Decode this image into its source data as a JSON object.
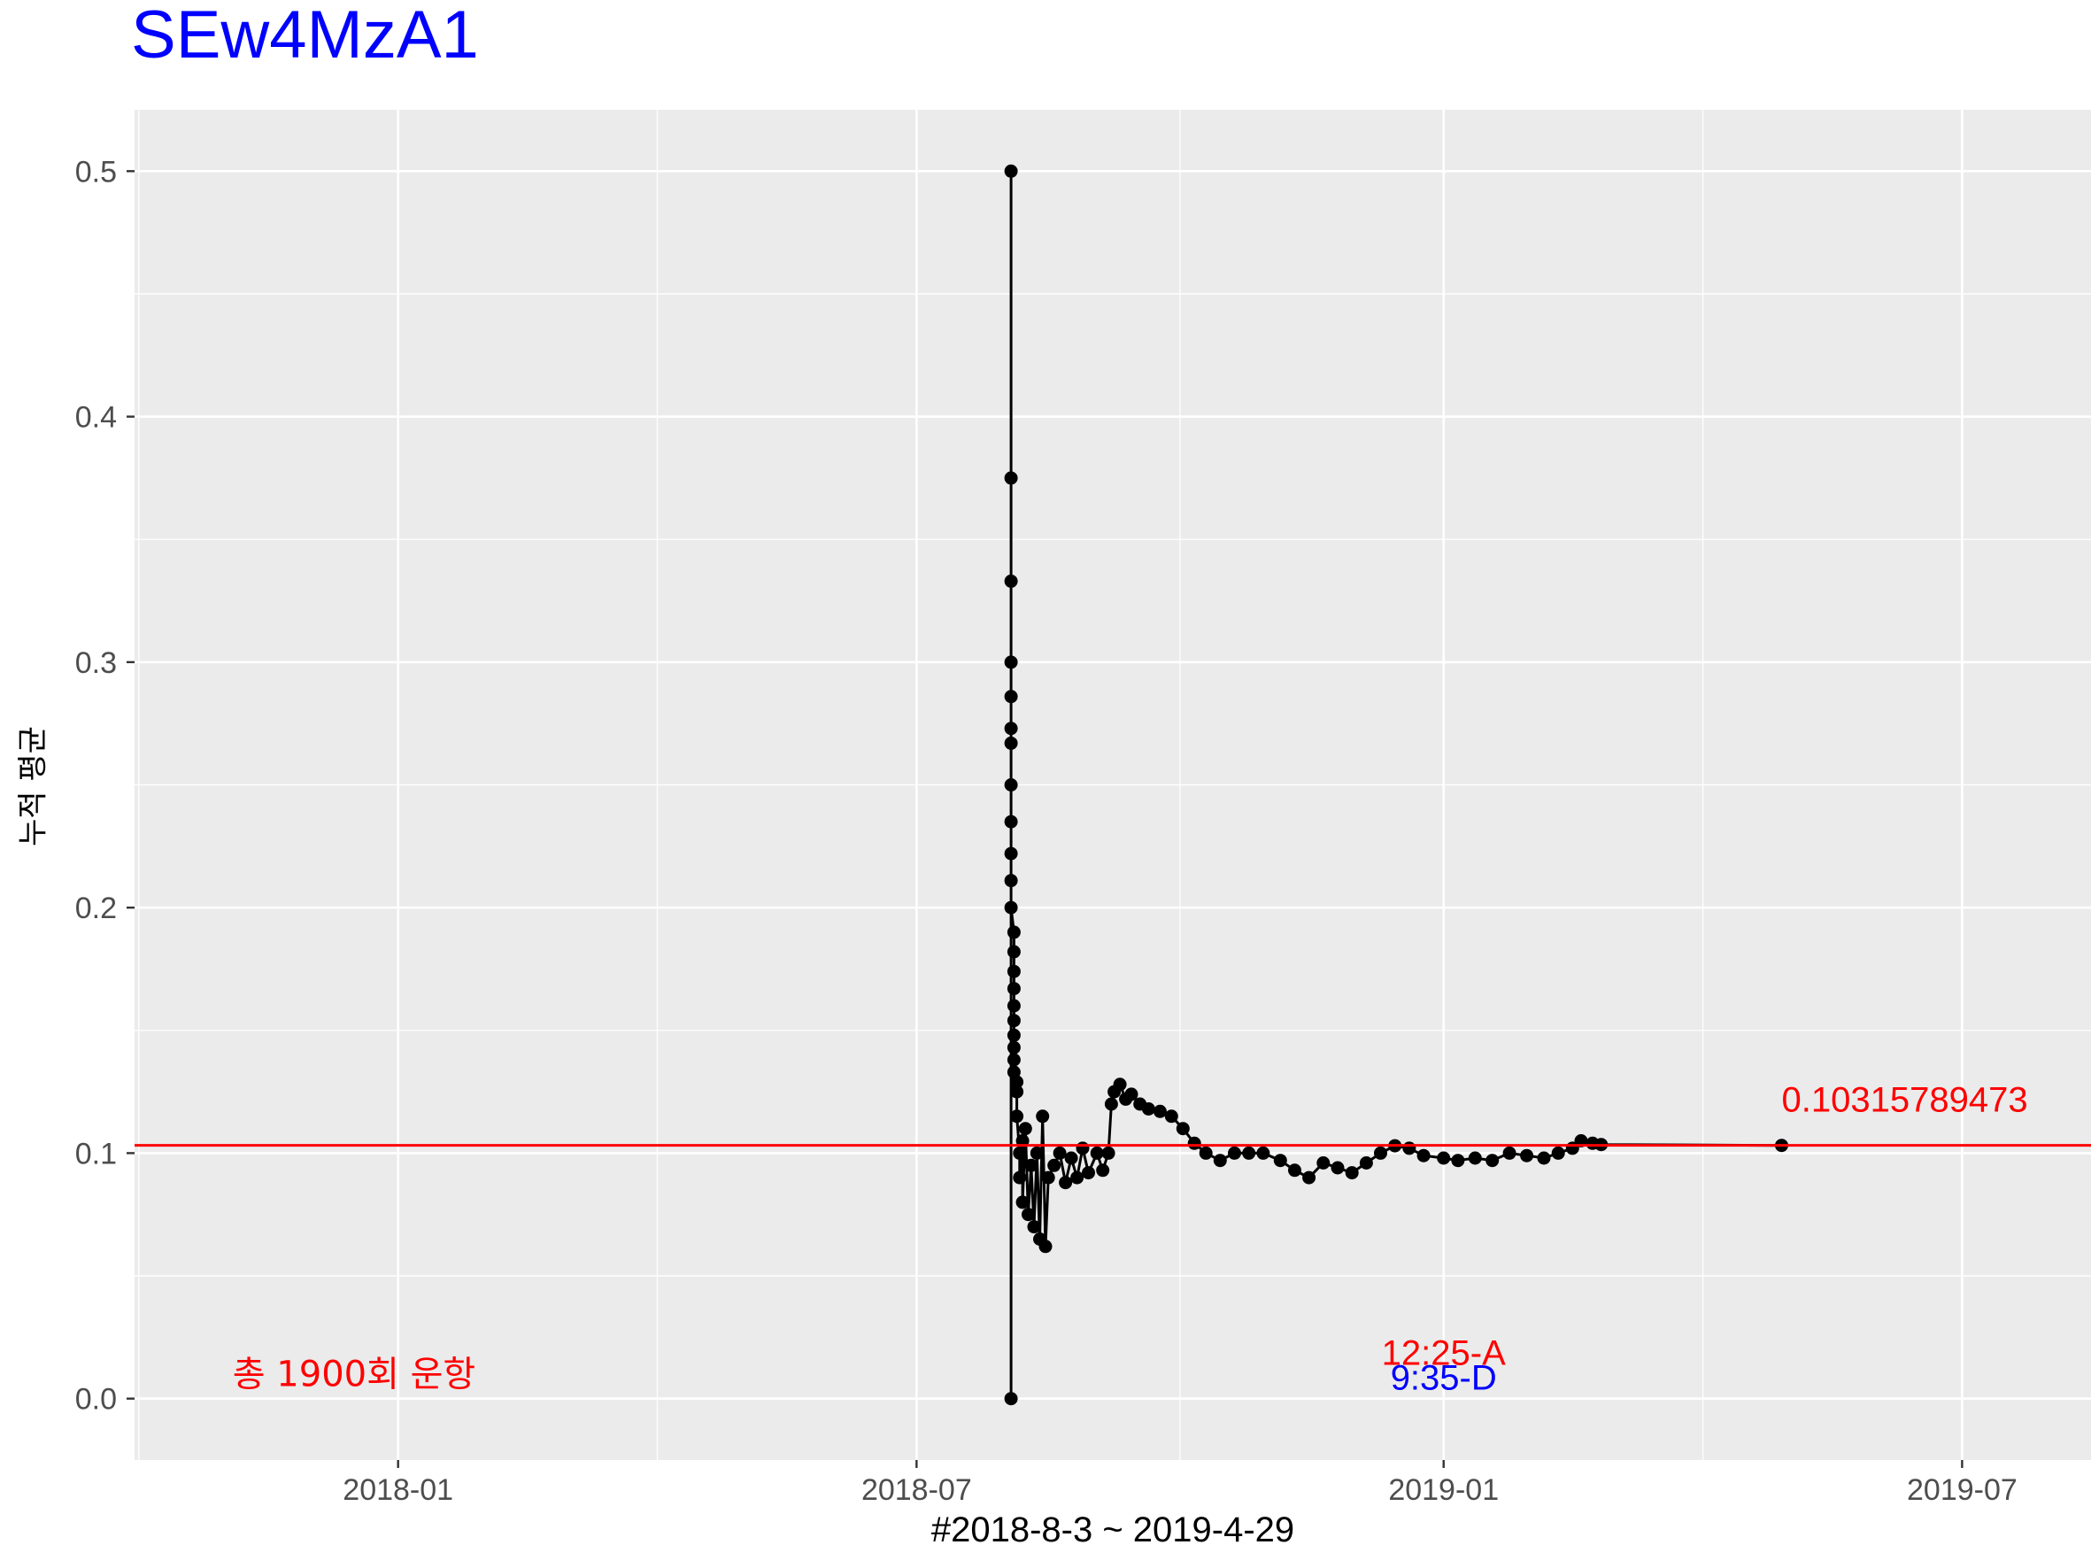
{
  "chart_data": {
    "type": "line",
    "title": "SEw4MzA1",
    "xlabel": "#2018-8-3 ~ 2019-4-29",
    "ylabel": "누적 평균",
    "x_range": [
      "2017-10-01",
      "2019-08-15"
    ],
    "ylim": [
      -0.025,
      0.525
    ],
    "x_ticks": [
      "2018-01",
      "2018-07",
      "2019-01",
      "2019-07"
    ],
    "y_ticks": [
      0.0,
      0.1,
      0.2,
      0.3,
      0.4,
      0.5
    ],
    "grid": true,
    "mean_line": {
      "value": 0.1031578947,
      "color": "#ff0000",
      "label": "0.10315789473"
    },
    "annotations": [
      {
        "text": "총 1900회 운항",
        "color": "#ff0000"
      },
      {
        "text": "12:25-A",
        "color": "#ff0000"
      },
      {
        "text": "9:35-D",
        "color": "#0000ff"
      }
    ],
    "series": [
      {
        "color": "#000000",
        "points": [
          [
            "2018-08-03",
            0.0
          ],
          [
            "2018-08-03",
            0.5
          ],
          [
            "2018-08-03",
            0.375
          ],
          [
            "2018-08-03",
            0.333
          ],
          [
            "2018-08-03",
            0.3
          ],
          [
            "2018-08-03",
            0.286
          ],
          [
            "2018-08-03",
            0.273
          ],
          [
            "2018-08-03",
            0.267
          ],
          [
            "2018-08-03",
            0.25
          ],
          [
            "2018-08-03",
            0.235
          ],
          [
            "2018-08-03",
            0.222
          ],
          [
            "2018-08-03",
            0.211
          ],
          [
            "2018-08-03",
            0.2
          ],
          [
            "2018-08-04",
            0.19
          ],
          [
            "2018-08-04",
            0.182
          ],
          [
            "2018-08-04",
            0.174
          ],
          [
            "2018-08-04",
            0.167
          ],
          [
            "2018-08-04",
            0.16
          ],
          [
            "2018-08-04",
            0.154
          ],
          [
            "2018-08-04",
            0.148
          ],
          [
            "2018-08-04",
            0.143
          ],
          [
            "2018-08-04",
            0.138
          ],
          [
            "2018-08-04",
            0.133
          ],
          [
            "2018-08-05",
            0.129
          ],
          [
            "2018-08-05",
            0.125
          ],
          [
            "2018-08-05",
            0.115
          ],
          [
            "2018-08-06",
            0.1
          ],
          [
            "2018-08-06",
            0.09
          ],
          [
            "2018-08-07",
            0.105
          ],
          [
            "2018-08-07",
            0.08
          ],
          [
            "2018-08-08",
            0.11
          ],
          [
            "2018-08-09",
            0.075
          ],
          [
            "2018-08-10",
            0.095
          ],
          [
            "2018-08-11",
            0.07
          ],
          [
            "2018-08-12",
            0.1
          ],
          [
            "2018-08-13",
            0.065
          ],
          [
            "2018-08-14",
            0.115
          ],
          [
            "2018-08-15",
            0.062
          ],
          [
            "2018-08-16",
            0.09
          ],
          [
            "2018-08-18",
            0.095
          ],
          [
            "2018-08-20",
            0.1
          ],
          [
            "2018-08-22",
            0.088
          ],
          [
            "2018-08-24",
            0.098
          ],
          [
            "2018-08-26",
            0.09
          ],
          [
            "2018-08-28",
            0.102
          ],
          [
            "2018-08-30",
            0.092
          ],
          [
            "2018-09-02",
            0.1
          ],
          [
            "2018-09-04",
            0.093
          ],
          [
            "2018-09-06",
            0.1
          ],
          [
            "2018-09-07",
            0.12
          ],
          [
            "2018-09-08",
            0.125
          ],
          [
            "2018-09-10",
            0.128
          ],
          [
            "2018-09-12",
            0.122
          ],
          [
            "2018-09-14",
            0.124
          ],
          [
            "2018-09-17",
            0.12
          ],
          [
            "2018-09-20",
            0.118
          ],
          [
            "2018-09-24",
            0.117
          ],
          [
            "2018-09-28",
            0.115
          ],
          [
            "2018-10-02",
            0.11
          ],
          [
            "2018-10-06",
            0.104
          ],
          [
            "2018-10-10",
            0.1
          ],
          [
            "2018-10-15",
            0.097
          ],
          [
            "2018-10-20",
            0.1
          ],
          [
            "2018-10-25",
            0.1
          ],
          [
            "2018-10-30",
            0.1
          ],
          [
            "2018-11-05",
            0.097
          ],
          [
            "2018-11-10",
            0.093
          ],
          [
            "2018-11-15",
            0.09
          ],
          [
            "2018-11-20",
            0.096
          ],
          [
            "2018-11-25",
            0.094
          ],
          [
            "2018-11-30",
            0.092
          ],
          [
            "2018-12-05",
            0.096
          ],
          [
            "2018-12-10",
            0.1
          ],
          [
            "2018-12-15",
            0.103
          ],
          [
            "2018-12-20",
            0.102
          ],
          [
            "2018-12-25",
            0.099
          ],
          [
            "2019-01-01",
            0.098
          ],
          [
            "2019-01-06",
            0.097
          ],
          [
            "2019-01-12",
            0.098
          ],
          [
            "2019-01-18",
            0.097
          ],
          [
            "2019-01-24",
            0.1
          ],
          [
            "2019-01-30",
            0.099
          ],
          [
            "2019-02-05",
            0.098
          ],
          [
            "2019-02-10",
            0.1
          ],
          [
            "2019-02-15",
            0.102
          ],
          [
            "2019-02-18",
            0.105
          ],
          [
            "2019-02-22",
            0.104
          ],
          [
            "2019-02-25",
            0.1035
          ],
          [
            "2019-04-29",
            0.1031578947
          ]
        ]
      }
    ]
  }
}
